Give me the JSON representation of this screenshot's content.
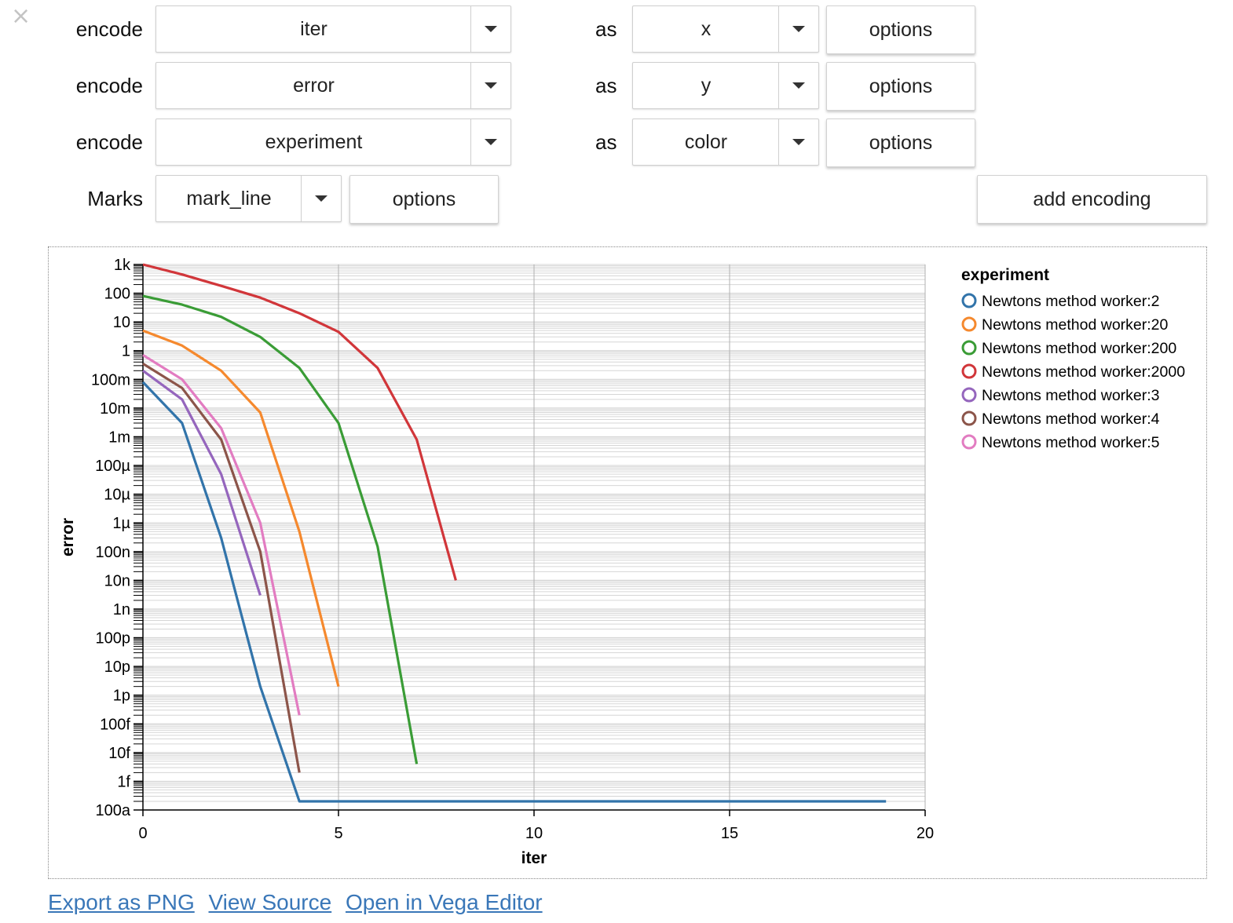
{
  "controls": {
    "close_icon": "×",
    "encodings": [
      {
        "label": "encode",
        "field": "iter",
        "as_label": "as",
        "channel": "x",
        "options_label": "options"
      },
      {
        "label": "encode",
        "field": "error",
        "as_label": "as",
        "channel": "y",
        "options_label": "options"
      },
      {
        "label": "encode",
        "field": "experiment",
        "as_label": "as",
        "channel": "color",
        "options_label": "options"
      }
    ],
    "marks": {
      "label": "Marks",
      "value": "mark_line",
      "options_label": "options"
    },
    "add_encoding_label": "add encoding"
  },
  "links": {
    "export_png": "Export as PNG",
    "view_source": "View Source",
    "open_vega": "Open in Vega Editor"
  },
  "chart_data": {
    "type": "line",
    "xlabel": "iter",
    "ylabel": "error",
    "xlim": [
      0,
      20
    ],
    "x_ticks": [
      0,
      5,
      10,
      15,
      20
    ],
    "y_scale": "log",
    "ylim": [
      1e-16,
      1000
    ],
    "y_ticks": [
      {
        "v": 1000,
        "label": "1k"
      },
      {
        "v": 100,
        "label": "100"
      },
      {
        "v": 10,
        "label": "10"
      },
      {
        "v": 1,
        "label": "1"
      },
      {
        "v": 0.1,
        "label": "100m"
      },
      {
        "v": 0.01,
        "label": "10m"
      },
      {
        "v": 0.001,
        "label": "1m"
      },
      {
        "v": 0.0001,
        "label": "100µ"
      },
      {
        "v": 1e-05,
        "label": "10µ"
      },
      {
        "v": 1e-06,
        "label": "1µ"
      },
      {
        "v": 1e-07,
        "label": "100n"
      },
      {
        "v": 1e-08,
        "label": "10n"
      },
      {
        "v": 1e-09,
        "label": "1n"
      },
      {
        "v": 1e-10,
        "label": "100p"
      },
      {
        "v": 1e-11,
        "label": "10p"
      },
      {
        "v": 1e-12,
        "label": "1p"
      },
      {
        "v": 1e-13,
        "label": "100f"
      },
      {
        "v": 1e-14,
        "label": "10f"
      },
      {
        "v": 1e-15,
        "label": "1f"
      },
      {
        "v": 1e-16,
        "label": "100a"
      }
    ],
    "grid": true,
    "legend_title": "experiment",
    "legend_position": "right",
    "series": [
      {
        "name": "Newtons method worker:2",
        "color": "#3274aa",
        "x": [
          0,
          1,
          2,
          3,
          4,
          5,
          6,
          7,
          8,
          9,
          10,
          11,
          12,
          13,
          14,
          15,
          16,
          17,
          18,
          19
        ],
        "y": [
          0.08,
          0.003,
          3e-07,
          2e-12,
          2e-16,
          2e-16,
          2e-16,
          2e-16,
          2e-16,
          2e-16,
          2e-16,
          2e-16,
          2e-16,
          2e-16,
          2e-16,
          2e-16,
          2e-16,
          2e-16,
          2e-16,
          2e-16
        ]
      },
      {
        "name": "Newtons method worker:20",
        "color": "#f5892e",
        "x": [
          0,
          1,
          2,
          3,
          4,
          5
        ],
        "y": [
          5,
          1.5,
          0.2,
          0.007,
          5e-07,
          2e-12
        ]
      },
      {
        "name": "Newtons method worker:200",
        "color": "#3a9c36",
        "x": [
          0,
          1,
          2,
          3,
          4,
          5,
          6,
          7
        ],
        "y": [
          80,
          40,
          15,
          3,
          0.25,
          0.003,
          1.5e-07,
          4e-15
        ]
      },
      {
        "name": "Newtons method worker:2000",
        "color": "#d1363a",
        "x": [
          0,
          1,
          2,
          3,
          4,
          5,
          6,
          7,
          8
        ],
        "y": [
          1000,
          450,
          180,
          70,
          20,
          4.5,
          0.25,
          0.0008,
          1e-08
        ]
      },
      {
        "name": "Newtons method worker:3",
        "color": "#9566bd",
        "x": [
          0,
          1,
          2,
          3
        ],
        "y": [
          0.2,
          0.02,
          5e-05,
          3e-09
        ]
      },
      {
        "name": "Newtons method worker:4",
        "color": "#8c554a",
        "x": [
          0,
          1,
          2,
          3,
          4
        ],
        "y": [
          0.35,
          0.05,
          0.0008,
          1e-07,
          2e-15
        ]
      },
      {
        "name": "Newtons method worker:5",
        "color": "#e27cc1",
        "x": [
          0,
          1,
          2,
          3,
          4
        ],
        "y": [
          0.7,
          0.1,
          0.002,
          1e-06,
          2e-13
        ]
      }
    ]
  }
}
